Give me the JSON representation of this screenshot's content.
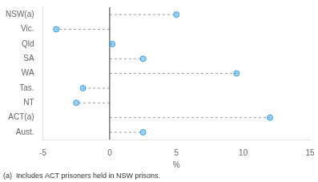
{
  "chart_data": {
    "type": "dot",
    "orientation": "horizontal",
    "categories": [
      "NSW(a)",
      "Vic.",
      "Qld",
      "SA",
      "WA",
      "Tas.",
      "NT",
      "ACT(a)",
      "Aust."
    ],
    "values": [
      5.0,
      -4.0,
      0.2,
      2.5,
      9.5,
      -2.0,
      -2.5,
      12.0,
      2.5
    ],
    "xlim": [
      -5,
      15
    ],
    "xticks": [
      -5,
      0,
      5,
      10,
      15
    ],
    "xlabel": "%",
    "footnote": "(a)  Includes ACT prisoners held in NSW prisons.",
    "grid": false,
    "marker": "circle",
    "line_style": "dashed"
  }
}
